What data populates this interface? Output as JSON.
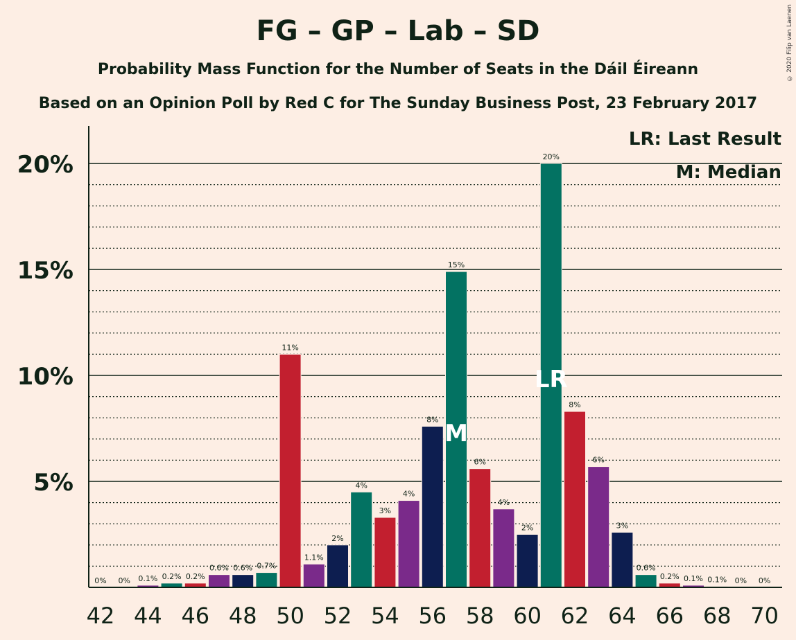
{
  "title": "FG – GP – Lab – SD",
  "subtitle": "Probability Mass Function for the Number of Seats in the Dáil Éireann",
  "subtitle2": "Based on an Opinion Poll by Red C for The Sunday Business Post, 23 February 2017",
  "copyright": "© 2020 Filip van Laenen",
  "legend": {
    "lr": "LR: Last Result",
    "m": "M: Median"
  },
  "colors": {
    "background": "#FDEEE4",
    "fg": "#037262",
    "lab": "#C21F2F",
    "gp": "#7A2A8A",
    "sd": "#0D1E50",
    "text": "#0F2216"
  },
  "chart_data": {
    "type": "bar",
    "x": [
      42,
      43,
      44,
      45,
      46,
      47,
      48,
      49,
      50,
      51,
      52,
      53,
      54,
      55,
      56,
      57,
      58,
      59,
      60,
      61,
      62,
      63,
      64,
      65,
      66,
      67,
      68,
      69,
      70
    ],
    "values": [
      0,
      0,
      0.1,
      0.2,
      0.2,
      0.6,
      0.6,
      0.7,
      11,
      1.1,
      2,
      4.5,
      3.3,
      4.1,
      7.6,
      14.9,
      5.6,
      3.7,
      2.5,
      20,
      8.3,
      5.7,
      2.6,
      0.6,
      0.2,
      0.1,
      0.05,
      0,
      0
    ],
    "labels": [
      "0%",
      "0%",
      "0.1%",
      "0.2%",
      "0.2%",
      "0.6%",
      "0.6%",
      "0.7%",
      "11%",
      "1.1%",
      "2%",
      "4%",
      "3%",
      "4%",
      "8%",
      "15%",
      "6%",
      "4%",
      "2%",
      "20%",
      "8%",
      "6%",
      "3%",
      "0.6%",
      "0.2%",
      "0.1%",
      "0.1%",
      "0%",
      "0%"
    ],
    "bar_colors": [
      "fg",
      "lab",
      "gp",
      "fg",
      "lab",
      "gp",
      "sd",
      "fg",
      "lab",
      "gp",
      "sd",
      "fg",
      "lab",
      "gp",
      "sd",
      "fg",
      "lab",
      "gp",
      "sd",
      "fg",
      "lab",
      "gp",
      "sd",
      "fg",
      "lab",
      "gp",
      "sd",
      "fg",
      "lab"
    ],
    "x_ticks": [
      42,
      44,
      46,
      48,
      50,
      52,
      54,
      56,
      58,
      60,
      62,
      64,
      66,
      68,
      70
    ],
    "y_ticks": [
      5,
      10,
      15,
      20
    ],
    "y_tick_labels": [
      "5%",
      "10%",
      "15%",
      "20%"
    ],
    "ylim": [
      0,
      21.8
    ],
    "median": {
      "x": 57,
      "label": "M"
    },
    "last_result": {
      "x": 61,
      "label": "LR"
    },
    "grid": "dotted minor lines every 1%, solid major lines every 5%",
    "legend_position": "top-right"
  }
}
